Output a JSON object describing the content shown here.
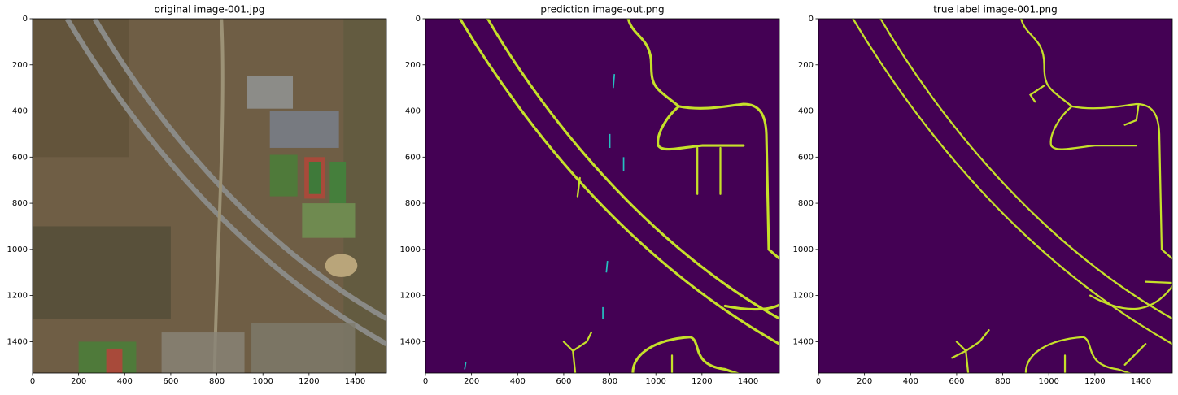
{
  "chart_data": [
    {
      "type": "image",
      "title": "original image-001.jpg",
      "xlim": [
        0,
        1536
      ],
      "ylim": [
        1536,
        0
      ],
      "xticks": [
        0,
        200,
        400,
        600,
        800,
        1000,
        1200,
        1400
      ],
      "yticks": [
        0,
        200,
        400,
        600,
        800,
        1000,
        1200,
        1400
      ]
    },
    {
      "type": "image",
      "title": "prediction image-out.png",
      "xlim": [
        0,
        1536
      ],
      "ylim": [
        1536,
        0
      ],
      "xticks": [
        0,
        200,
        400,
        600,
        800,
        1000,
        1200,
        1400
      ],
      "yticks": [
        0,
        200,
        400,
        600,
        800,
        1000,
        1200,
        1400
      ]
    },
    {
      "type": "image",
      "title": "true label image-001.png",
      "xlim": [
        0,
        1536
      ],
      "ylim": [
        1536,
        0
      ],
      "xticks": [
        0,
        200,
        400,
        600,
        800,
        1000,
        1200,
        1400
      ],
      "yticks": [
        0,
        200,
        400,
        600,
        800,
        1000,
        1200,
        1400
      ]
    }
  ]
}
